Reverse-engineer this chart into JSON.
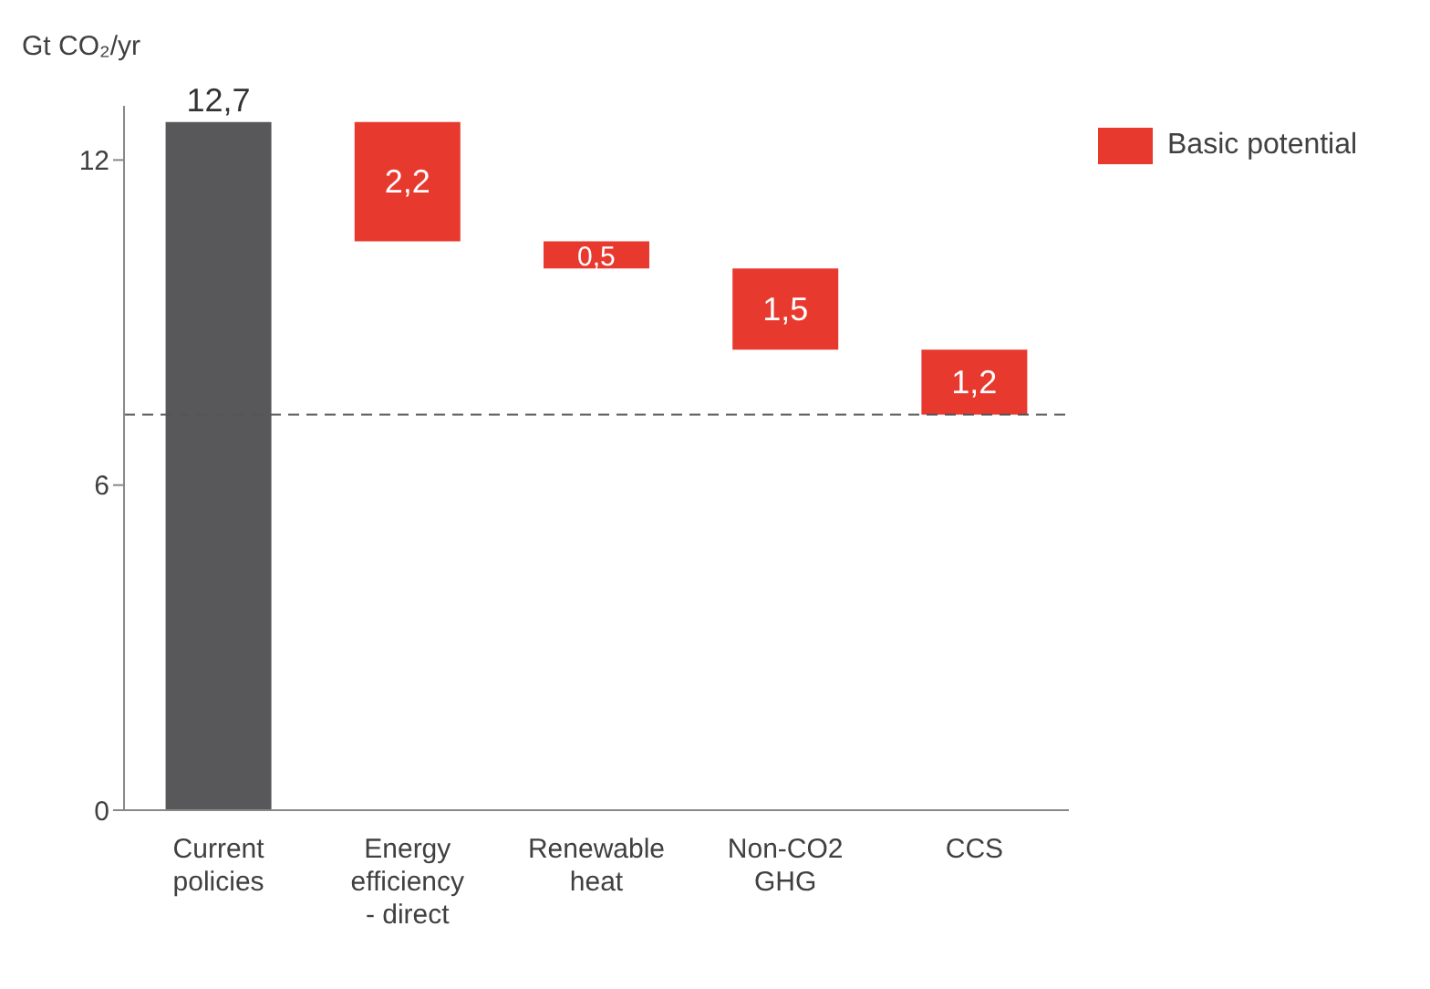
{
  "chart_data": {
    "type": "bar",
    "ylabel": "Gt CO₂/yr",
    "categories": [
      "Current policies",
      "Energy efficiency - direct",
      "Renewable heat",
      "Non-CO2 GHG",
      "CCS"
    ],
    "series": [
      {
        "color": "#58585a",
        "values": [
          12.7,
          null,
          null,
          null,
          null
        ],
        "base": [
          0,
          null,
          null,
          null,
          null
        ],
        "value_labels": [
          "12,7",
          null,
          null,
          null,
          null
        ]
      },
      {
        "name": "Basic potential",
        "color": "#e8392f",
        "values": [
          null,
          2.2,
          0.5,
          1.5,
          1.2
        ],
        "base": [
          null,
          10.5,
          10,
          8.5,
          7.3
        ],
        "value_labels": [
          null,
          "2,2",
          "0,5",
          "1,5",
          "1,2"
        ]
      }
    ],
    "ylim": [
      0,
      13
    ],
    "yticks": [
      0,
      6,
      12
    ],
    "grid": false,
    "legend": "top right",
    "ref_lines": [
      {
        "axis": "y",
        "value": 7.3,
        "color": "#555555",
        "line_style": "dashed"
      }
    ]
  }
}
